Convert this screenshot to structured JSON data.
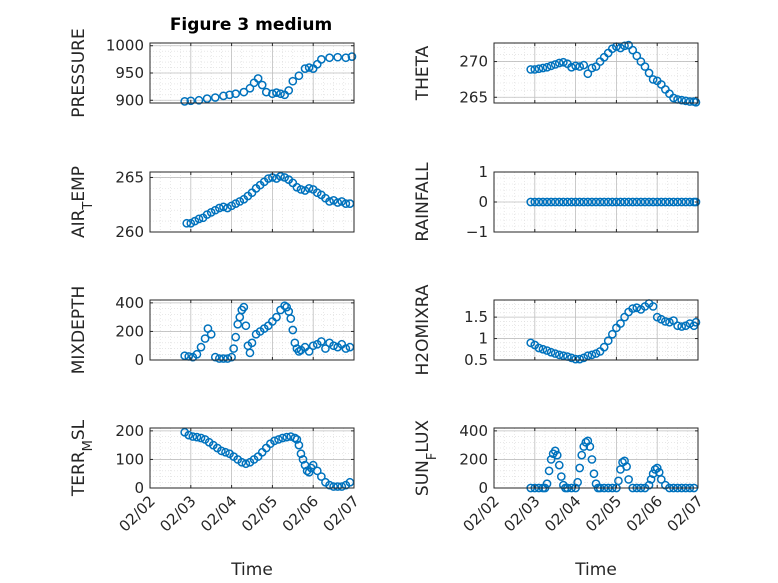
{
  "figure": {
    "title": "Figure 3 medium"
  },
  "colors": {
    "marker": "#0072BD",
    "axis": "#262626",
    "grid": "#bfbfbf",
    "minor_grid": "#d9d9d9"
  },
  "chart_data": [
    {
      "type": "scatter",
      "ylabel": "PRESSURE",
      "xlim": [
        "2018-02-02",
        "2018-02-07"
      ],
      "ylim": [
        895,
        1005
      ],
      "yticks": [
        900,
        950,
        1000
      ],
      "xtick_labels": [
        "02/02",
        "02/03",
        "02/04",
        "02/05",
        "02/06",
        "02/07"
      ],
      "show_xtick_labels": false,
      "grid": true,
      "title": "Figure 3 medium",
      "x": [
        2.85,
        3.0,
        3.2,
        3.4,
        3.6,
        3.8,
        3.95,
        4.1,
        4.3,
        4.45,
        4.55,
        4.65,
        4.75,
        4.85,
        5.0,
        5.1,
        5.2,
        5.3,
        5.4,
        5.5,
        5.65,
        5.8,
        5.9,
        6.0,
        6.1,
        6.2,
        6.4,
        6.6,
        6.8,
        6.95
      ],
      "y": [
        898,
        899,
        900,
        903,
        905,
        908,
        910,
        912,
        915,
        922,
        932,
        940,
        928,
        915,
        912,
        914,
        912,
        910,
        918,
        935,
        945,
        958,
        960,
        958,
        966,
        975,
        978,
        979,
        978,
        980
      ]
    },
    {
      "type": "scatter",
      "ylabel": "THETA",
      "xlim": [
        "2018-02-02",
        "2018-02-07"
      ],
      "ylim": [
        264.2,
        272.6
      ],
      "yticks": [
        265,
        270
      ],
      "xtick_labels": [
        "02/02",
        "02/03",
        "02/04",
        "02/05",
        "02/06",
        "02/07"
      ],
      "show_xtick_labels": false,
      "grid": true,
      "x": [
        2.9,
        3.0,
        3.1,
        3.2,
        3.3,
        3.4,
        3.5,
        3.6,
        3.7,
        3.8,
        3.9,
        4.0,
        4.1,
        4.2,
        4.3,
        4.4,
        4.5,
        4.6,
        4.7,
        4.8,
        4.9,
        5.0,
        5.1,
        5.2,
        5.3,
        5.4,
        5.5,
        5.6,
        5.7,
        5.8,
        5.9,
        6.0,
        6.1,
        6.2,
        6.3,
        6.4,
        6.5,
        6.6,
        6.7,
        6.8,
        6.9,
        6.95
      ],
      "y": [
        268.9,
        268.9,
        269.0,
        269.1,
        269.2,
        269.4,
        269.6,
        269.8,
        269.9,
        269.7,
        269.2,
        269.4,
        269.3,
        269.5,
        268.3,
        269.1,
        269.3,
        270.0,
        270.6,
        271.2,
        271.8,
        272.1,
        271.9,
        272.2,
        272.3,
        271.6,
        270.8,
        270.0,
        269.3,
        268.4,
        267.5,
        267.3,
        266.8,
        266.1,
        265.5,
        264.9,
        264.7,
        264.6,
        264.5,
        264.4,
        264.4,
        264.3
      ]
    },
    {
      "type": "scatter",
      "ylabel": "AIR_TEMP",
      "xlim": [
        "2018-02-02",
        "2018-02-07"
      ],
      "ylim": [
        260,
        265.5
      ],
      "yticks": [
        260,
        265
      ],
      "xtick_labels": [
        "02/02",
        "02/03",
        "02/04",
        "02/05",
        "02/06",
        "02/07"
      ],
      "show_xtick_labels": false,
      "grid": true,
      "x": [
        2.9,
        3.0,
        3.1,
        3.2,
        3.3,
        3.4,
        3.5,
        3.6,
        3.7,
        3.8,
        3.9,
        4.0,
        4.1,
        4.2,
        4.3,
        4.4,
        4.5,
        4.6,
        4.7,
        4.8,
        4.9,
        5.0,
        5.1,
        5.2,
        5.3,
        5.4,
        5.5,
        5.6,
        5.7,
        5.8,
        5.9,
        6.0,
        6.1,
        6.2,
        6.3,
        6.4,
        6.5,
        6.6,
        6.7,
        6.8,
        6.9
      ],
      "y": [
        260.8,
        260.8,
        261.0,
        261.2,
        261.3,
        261.6,
        261.8,
        262.0,
        262.2,
        262.3,
        262.2,
        262.4,
        262.6,
        262.8,
        263.0,
        263.3,
        263.6,
        264.0,
        264.3,
        264.6,
        264.9,
        265.0,
        264.9,
        265.1,
        265.0,
        264.8,
        264.5,
        264.1,
        263.9,
        263.8,
        264.0,
        263.9,
        263.6,
        263.4,
        263.1,
        262.8,
        262.9,
        262.7,
        262.8,
        262.6,
        262.6
      ]
    },
    {
      "type": "scatter",
      "ylabel": "RAINFALL",
      "xlim": [
        "2018-02-02",
        "2018-02-07"
      ],
      "ylim": [
        -1,
        1
      ],
      "yticks": [
        -1,
        0,
        1
      ],
      "xtick_labels": [
        "02/02",
        "02/03",
        "02/04",
        "02/05",
        "02/06",
        "02/07"
      ],
      "show_xtick_labels": false,
      "grid": true,
      "x": [
        2.9,
        3.0,
        3.1,
        3.2,
        3.3,
        3.4,
        3.5,
        3.6,
        3.7,
        3.8,
        3.9,
        4.0,
        4.1,
        4.2,
        4.3,
        4.4,
        4.5,
        4.6,
        4.7,
        4.8,
        4.9,
        5.0,
        5.1,
        5.2,
        5.3,
        5.4,
        5.5,
        5.6,
        5.7,
        5.8,
        5.9,
        6.0,
        6.1,
        6.2,
        6.3,
        6.4,
        6.5,
        6.6,
        6.7,
        6.8,
        6.9,
        6.95
      ],
      "y": [
        0,
        0,
        0,
        0,
        0,
        0,
        0,
        0,
        0,
        0,
        0,
        0,
        0,
        0,
        0,
        0,
        0,
        0,
        0,
        0,
        0,
        0,
        0,
        0,
        0,
        0,
        0,
        0,
        0,
        0,
        0,
        0,
        0,
        0,
        0,
        0,
        0,
        0,
        0,
        0,
        0,
        0
      ]
    },
    {
      "type": "scatter",
      "ylabel": "MIXDEPTH",
      "xlim": [
        "2018-02-02",
        "2018-02-07"
      ],
      "ylim": [
        0,
        420
      ],
      "yticks": [
        0,
        200,
        400
      ],
      "xtick_labels": [
        "02/02",
        "02/03",
        "02/04",
        "02/05",
        "02/06",
        "02/07"
      ],
      "show_xtick_labels": false,
      "grid": true,
      "x": [
        2.85,
        2.95,
        3.05,
        3.15,
        3.25,
        3.35,
        3.42,
        3.5,
        3.6,
        3.7,
        3.8,
        3.9,
        4.0,
        4.05,
        4.1,
        4.15,
        4.2,
        4.25,
        4.3,
        4.35,
        4.4,
        4.45,
        4.5,
        4.6,
        4.7,
        4.8,
        4.9,
        5.0,
        5.1,
        5.2,
        5.3,
        5.35,
        5.4,
        5.45,
        5.5,
        5.55,
        5.6,
        5.65,
        5.7,
        5.8,
        5.9,
        6.0,
        6.1,
        6.2,
        6.3,
        6.4,
        6.5,
        6.6,
        6.7,
        6.8,
        6.9
      ],
      "y": [
        30,
        25,
        20,
        40,
        90,
        150,
        220,
        180,
        20,
        10,
        10,
        10,
        20,
        80,
        160,
        250,
        300,
        350,
        370,
        240,
        100,
        50,
        120,
        180,
        200,
        220,
        240,
        270,
        300,
        350,
        380,
        370,
        340,
        290,
        210,
        120,
        80,
        60,
        70,
        90,
        60,
        100,
        110,
        130,
        80,
        120,
        100,
        90,
        110,
        80,
        90
      ]
    },
    {
      "type": "scatter",
      "ylabel": "H2OMIXRA",
      "xlim": [
        "2018-02-02",
        "2018-02-07"
      ],
      "ylim": [
        0.5,
        1.9
      ],
      "yticks": [
        0.5,
        1,
        1.5
      ],
      "xtick_labels": [
        "02/02",
        "02/03",
        "02/04",
        "02/05",
        "02/06",
        "02/07"
      ],
      "show_xtick_labels": false,
      "grid": true,
      "x": [
        2.9,
        3.0,
        3.1,
        3.2,
        3.3,
        3.4,
        3.5,
        3.6,
        3.7,
        3.8,
        3.9,
        4.0,
        4.1,
        4.2,
        4.3,
        4.4,
        4.5,
        4.6,
        4.7,
        4.8,
        4.9,
        5.0,
        5.1,
        5.2,
        5.3,
        5.4,
        5.5,
        5.6,
        5.7,
        5.8,
        5.9,
        6.0,
        6.1,
        6.2,
        6.3,
        6.4,
        6.5,
        6.6,
        6.7,
        6.8,
        6.9,
        6.95
      ],
      "y": [
        0.9,
        0.85,
        0.78,
        0.75,
        0.72,
        0.68,
        0.65,
        0.62,
        0.6,
        0.58,
        0.55,
        0.52,
        0.52,
        0.55,
        0.6,
        0.62,
        0.65,
        0.7,
        0.8,
        0.95,
        1.1,
        1.25,
        1.35,
        1.5,
        1.62,
        1.7,
        1.72,
        1.68,
        1.75,
        1.82,
        1.75,
        1.5,
        1.45,
        1.4,
        1.38,
        1.42,
        1.3,
        1.28,
        1.3,
        1.35,
        1.3,
        1.38
      ]
    },
    {
      "type": "scatter",
      "ylabel": "TERR_MSL",
      "xlim": [
        "2018-02-02",
        "2018-02-07"
      ],
      "ylim": [
        0,
        210
      ],
      "yticks": [
        0,
        100,
        200
      ],
      "xtick_labels": [
        "02/02",
        "02/03",
        "02/04",
        "02/05",
        "02/06",
        "02/07"
      ],
      "show_xtick_labels": true,
      "grid": true,
      "xlabel": "Time",
      "x": [
        2.85,
        2.95,
        3.05,
        3.15,
        3.25,
        3.35,
        3.45,
        3.55,
        3.65,
        3.75,
        3.85,
        3.95,
        4.05,
        4.15,
        4.25,
        4.35,
        4.45,
        4.55,
        4.65,
        4.75,
        4.85,
        4.95,
        5.05,
        5.15,
        5.25,
        5.35,
        5.45,
        5.55,
        5.6,
        5.65,
        5.7,
        5.75,
        5.8,
        5.85,
        5.9,
        5.95,
        6.0,
        6.1,
        6.2,
        6.3,
        6.4,
        6.5,
        6.6,
        6.7,
        6.8,
        6.9
      ],
      "y": [
        195,
        185,
        180,
        178,
        175,
        170,
        160,
        150,
        140,
        130,
        125,
        120,
        110,
        100,
        90,
        85,
        90,
        100,
        110,
        125,
        140,
        155,
        165,
        170,
        175,
        178,
        180,
        175,
        170,
        150,
        120,
        100,
        80,
        60,
        55,
        70,
        80,
        60,
        40,
        20,
        10,
        5,
        5,
        5,
        10,
        20
      ]
    },
    {
      "type": "scatter",
      "ylabel": "SUN_FLUX",
      "xlim": [
        "2018-02-02",
        "2018-02-07"
      ],
      "ylim": [
        0,
        420
      ],
      "yticks": [
        0,
        200,
        400
      ],
      "xtick_labels": [
        "02/02",
        "02/03",
        "02/04",
        "02/05",
        "02/06",
        "02/07"
      ],
      "show_xtick_labels": true,
      "grid": true,
      "xlabel": "Time",
      "x": [
        2.9,
        3.0,
        3.1,
        3.2,
        3.25,
        3.3,
        3.35,
        3.4,
        3.45,
        3.5,
        3.55,
        3.6,
        3.65,
        3.7,
        3.75,
        3.8,
        3.9,
        4.0,
        4.05,
        4.1,
        4.15,
        4.2,
        4.25,
        4.3,
        4.35,
        4.4,
        4.45,
        4.5,
        4.55,
        4.6,
        4.7,
        4.8,
        4.9,
        5.0,
        5.05,
        5.1,
        5.15,
        5.2,
        5.25,
        5.3,
        5.4,
        5.5,
        5.6,
        5.7,
        5.8,
        5.85,
        5.9,
        5.95,
        6.0,
        6.05,
        6.1,
        6.2,
        6.3,
        6.4,
        6.5,
        6.6,
        6.7,
        6.8,
        6.9
      ],
      "y": [
        0,
        0,
        0,
        0,
        0,
        30,
        120,
        200,
        240,
        260,
        230,
        160,
        80,
        20,
        0,
        0,
        0,
        0,
        40,
        140,
        230,
        290,
        320,
        330,
        290,
        200,
        100,
        30,
        0,
        0,
        0,
        0,
        0,
        0,
        50,
        130,
        180,
        190,
        150,
        60,
        0,
        0,
        0,
        0,
        20,
        60,
        100,
        130,
        140,
        110,
        60,
        20,
        0,
        0,
        0,
        0,
        0,
        0,
        0
      ]
    }
  ]
}
